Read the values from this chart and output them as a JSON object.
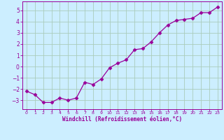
{
  "x": [
    0,
    1,
    2,
    3,
    4,
    5,
    6,
    7,
    8,
    9,
    10,
    11,
    12,
    13,
    14,
    15,
    16,
    17,
    18,
    19,
    20,
    21,
    22,
    23
  ],
  "y": [
    -2.2,
    -2.5,
    -3.2,
    -3.2,
    -2.8,
    -3.0,
    -2.8,
    -1.4,
    -1.6,
    -1.1,
    -0.1,
    0.3,
    0.6,
    1.5,
    1.6,
    2.2,
    3.0,
    3.7,
    4.1,
    4.2,
    4.3,
    4.8,
    4.8,
    5.3
  ],
  "line_color": "#990099",
  "marker": "D",
  "marker_size": 2.5,
  "bg_color": "#cceeff",
  "grid_color": "#aaccbb",
  "xlabel": "Windchill (Refroidissement éolien,°C)",
  "xlabel_color": "#990099",
  "tick_color": "#990099",
  "xlim": [
    -0.5,
    23.5
  ],
  "ylim": [
    -3.8,
    5.8
  ],
  "yticks": [
    -3,
    -2,
    -1,
    0,
    1,
    2,
    3,
    4,
    5
  ],
  "xticks": [
    0,
    1,
    2,
    3,
    4,
    5,
    6,
    7,
    8,
    9,
    10,
    11,
    12,
    13,
    14,
    15,
    16,
    17,
    18,
    19,
    20,
    21,
    22,
    23
  ]
}
